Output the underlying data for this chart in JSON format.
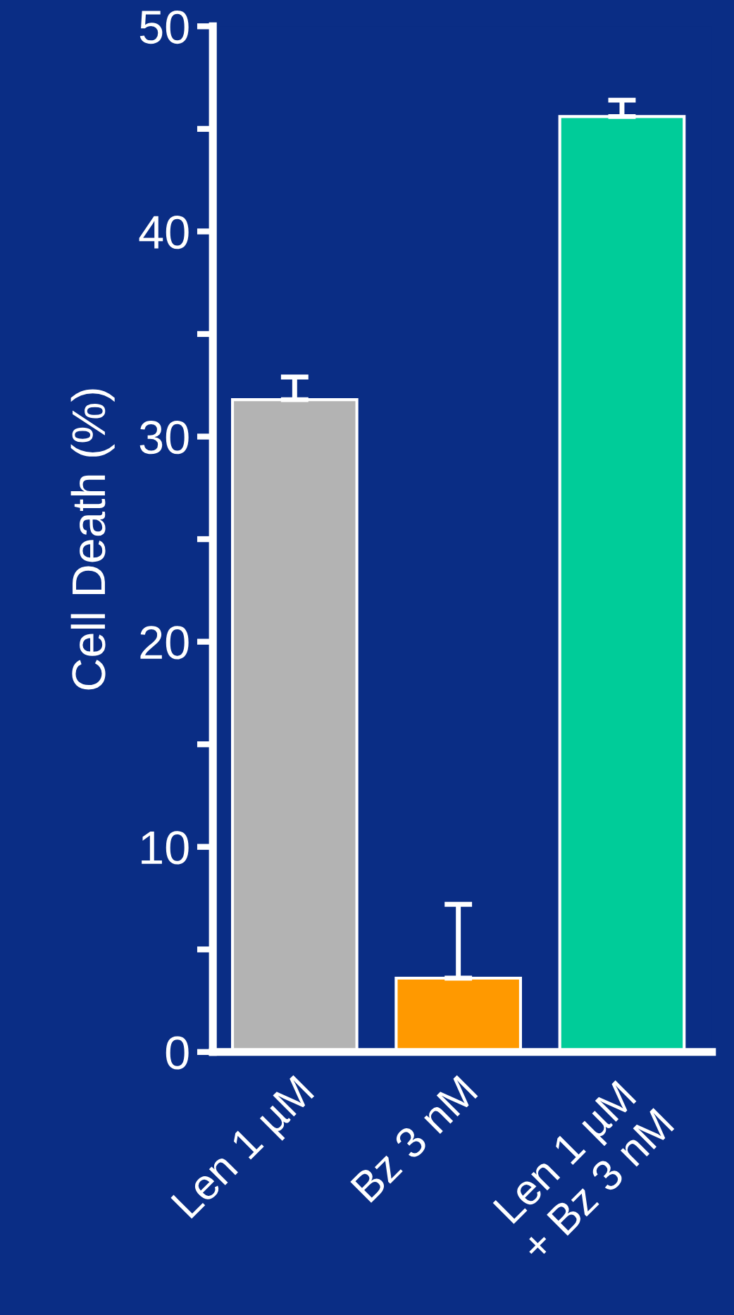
{
  "chart_data": {
    "type": "bar",
    "ylabel": "Cell Death (%)",
    "categories": [
      "Len 1 µM",
      "Bz 3 nM",
      "Len 1 µM\n+ Bz 3 nM"
    ],
    "values": [
      31.8,
      3.6,
      45.6
    ],
    "colors": [
      "#b3b3b3",
      "#ff9900",
      "#00cc99"
    ],
    "errors": [
      [
        31.8,
        32.9
      ],
      [
        3.6,
        7.2
      ],
      [
        45.6,
        46.4
      ]
    ],
    "ylim": [
      0,
      50
    ],
    "yticks": [
      0,
      {
        "value": 5,
        "label": null
      },
      10,
      {
        "value": 15,
        "label": null
      },
      20,
      {
        "value": 25,
        "label": null
      },
      30,
      {
        "value": 35,
        "label": null
      },
      40,
      {
        "value": 45,
        "label": null
      },
      50
    ],
    "grid": false,
    "legend": false
  }
}
